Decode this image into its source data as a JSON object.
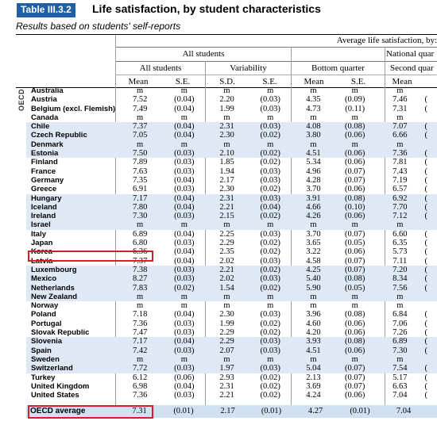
{
  "header": {
    "table_label": "Table III.3.2",
    "title": "Life satisfaction, by student characteristics"
  },
  "subtitle": "Results based on students' self-reports",
  "columns": {
    "group_top": "Average life satisfaction, by:",
    "all_students_group": "All students",
    "all_students": "All students",
    "variability": "Variability",
    "bottom_quarter": "Bottom quarter",
    "national_quarter": "National quar",
    "second_quarter": "Second quar",
    "mean": "Mean",
    "se": "S.E.",
    "sd": "S.D.",
    "mean2": "Mean",
    "se2": "S.E.",
    "sd_se": "S.E.",
    "mean3": "Mean",
    "se3": "S.E.",
    "mean4": "Mean"
  },
  "side_label": "OECD",
  "rows": [
    {
      "country": "Australia",
      "v": [
        "m",
        "m",
        "m",
        "m",
        "m",
        "m",
        "m"
      ],
      "e": ""
    },
    {
      "country": "Austria",
      "v": [
        "7.52",
        "(0.04)",
        "2.20",
        "(0.03)",
        "4.35",
        "(0.09)",
        "7.46"
      ],
      "e": "("
    },
    {
      "country": "Belgium (excl. Flemish)",
      "v": [
        "7.49",
        "(0.04)",
        "1.99",
        "(0.03)",
        "4.73",
        "(0.11)",
        "7.31"
      ],
      "e": "("
    },
    {
      "country": "Canada",
      "v": [
        "m",
        "m",
        "m",
        "m",
        "m",
        "m",
        "m"
      ],
      "e": ""
    },
    {
      "country": "Chile",
      "v": [
        "7.37",
        "(0.04)",
        "2.31",
        "(0.03)",
        "4.08",
        "(0.08)",
        "7.07"
      ],
      "e": "("
    },
    {
      "country": "Czech Republic",
      "v": [
        "7.05",
        "(0.04)",
        "2.30",
        "(0.02)",
        "3.80",
        "(0.06)",
        "6.66"
      ],
      "e": "("
    },
    {
      "country": "Denmark",
      "v": [
        "m",
        "m",
        "m",
        "m",
        "m",
        "m",
        "m"
      ],
      "e": ""
    },
    {
      "country": "Estonia",
      "v": [
        "7.50",
        "(0.03)",
        "2.10",
        "(0.02)",
        "4.51",
        "(0.06)",
        "7.36"
      ],
      "e": "("
    },
    {
      "country": "Finland",
      "v": [
        "7.89",
        "(0.03)",
        "1.85",
        "(0.02)",
        "5.34",
        "(0.06)",
        "7.81"
      ],
      "e": "("
    },
    {
      "country": "France",
      "v": [
        "7.63",
        "(0.03)",
        "1.94",
        "(0.03)",
        "4.96",
        "(0.07)",
        "7.43"
      ],
      "e": "("
    },
    {
      "country": "Germany",
      "v": [
        "7.35",
        "(0.04)",
        "2.17",
        "(0.03)",
        "4.28",
        "(0.07)",
        "7.19"
      ],
      "e": "("
    },
    {
      "country": "Greece",
      "v": [
        "6.91",
        "(0.03)",
        "2.30",
        "(0.02)",
        "3.70",
        "(0.06)",
        "6.57"
      ],
      "e": "("
    },
    {
      "country": "Hungary",
      "v": [
        "7.17",
        "(0.04)",
        "2.31",
        "(0.03)",
        "3.91",
        "(0.08)",
        "6.92"
      ],
      "e": "("
    },
    {
      "country": "Iceland",
      "v": [
        "7.80",
        "(0.04)",
        "2.21",
        "(0.04)",
        "4.66",
        "(0.10)",
        "7.70"
      ],
      "e": "("
    },
    {
      "country": "Ireland",
      "v": [
        "7.30",
        "(0.03)",
        "2.15",
        "(0.02)",
        "4.26",
        "(0.06)",
        "7.12"
      ],
      "e": "("
    },
    {
      "country": "Israel",
      "v": [
        "m",
        "m",
        "m",
        "m",
        "m",
        "m",
        "m"
      ],
      "e": ""
    },
    {
      "country": "Italy",
      "v": [
        "6.89",
        "(0.04)",
        "2.25",
        "(0.03)",
        "3.70",
        "(0.07)",
        "6.60"
      ],
      "e": "("
    },
    {
      "country": "Japan",
      "v": [
        "6.80",
        "(0.03)",
        "2.29",
        "(0.02)",
        "3.65",
        "(0.05)",
        "6.35"
      ],
      "e": "("
    },
    {
      "country": "Korea",
      "v": [
        "6.36",
        "(0.04)",
        "2.35",
        "(0.02)",
        "3.22",
        "(0.06)",
        "5.73"
      ],
      "e": "("
    },
    {
      "country": "Latvia",
      "v": [
        "7.37",
        "(0.04)",
        "2.02",
        "(0.03)",
        "4.58",
        "(0.07)",
        "7.11"
      ],
      "e": "("
    },
    {
      "country": "Luxembourg",
      "v": [
        "7.38",
        "(0.03)",
        "2.21",
        "(0.02)",
        "4.25",
        "(0.07)",
        "7.20"
      ],
      "e": "("
    },
    {
      "country": "Mexico",
      "v": [
        "8.27",
        "(0.03)",
        "2.02",
        "(0.03)",
        "5.40",
        "(0.08)",
        "8.34"
      ],
      "e": "("
    },
    {
      "country": "Netherlands",
      "v": [
        "7.83",
        "(0.02)",
        "1.54",
        "(0.02)",
        "5.90",
        "(0.05)",
        "7.56"
      ],
      "e": "("
    },
    {
      "country": "New Zealand",
      "v": [
        "m",
        "m",
        "m",
        "m",
        "m",
        "m",
        "m"
      ],
      "e": ""
    },
    {
      "country": "Norway",
      "v": [
        "m",
        "m",
        "m",
        "m",
        "m",
        "m",
        "m"
      ],
      "e": ""
    },
    {
      "country": "Poland",
      "v": [
        "7.18",
        "(0.04)",
        "2.30",
        "(0.03)",
        "3.96",
        "(0.08)",
        "6.84"
      ],
      "e": "("
    },
    {
      "country": "Portugal",
      "v": [
        "7.36",
        "(0.03)",
        "1.99",
        "(0.02)",
        "4.60",
        "(0.06)",
        "7.06"
      ],
      "e": "("
    },
    {
      "country": "Slovak Republic",
      "v": [
        "7.47",
        "(0.03)",
        "2.29",
        "(0.02)",
        "4.20",
        "(0.06)",
        "7.26"
      ],
      "e": "("
    },
    {
      "country": "Slovenia",
      "v": [
        "7.17",
        "(0.04)",
        "2.29",
        "(0.03)",
        "3.93",
        "(0.08)",
        "6.89"
      ],
      "e": "("
    },
    {
      "country": "Spain",
      "v": [
        "7.42",
        "(0.03)",
        "2.07",
        "(0.03)",
        "4.51",
        "(0.06)",
        "7.30"
      ],
      "e": "("
    },
    {
      "country": "Sweden",
      "v": [
        "m",
        "m",
        "m",
        "m",
        "m",
        "m",
        "m"
      ],
      "e": ""
    },
    {
      "country": "Switzerland",
      "v": [
        "7.72",
        "(0.03)",
        "1.97",
        "(0.03)",
        "5.04",
        "(0.07)",
        "7.54"
      ],
      "e": "("
    },
    {
      "country": "Turkey",
      "v": [
        "6.12",
        "(0.06)",
        "2.93",
        "(0.02)",
        "2.13",
        "(0.07)",
        "5.17"
      ],
      "e": "("
    },
    {
      "country": "United Kingdom",
      "v": [
        "6.98",
        "(0.04)",
        "2.31",
        "(0.02)",
        "3.69",
        "(0.07)",
        "6.63"
      ],
      "e": "("
    },
    {
      "country": "United States",
      "v": [
        "7.36",
        "(0.03)",
        "2.21",
        "(0.02)",
        "4.24",
        "(0.06)",
        "7.04"
      ],
      "e": "("
    }
  ],
  "oecd_average": {
    "label": "OECD average",
    "v": [
      "7.31",
      "(0.01)",
      "2.17",
      "(0.01)",
      "4.27",
      "(0.01)",
      "7.04"
    ]
  },
  "colors": {
    "label_bg": "#1f5fa6",
    "shade": "#dfe9f6",
    "highlight": "#d0202a"
  }
}
